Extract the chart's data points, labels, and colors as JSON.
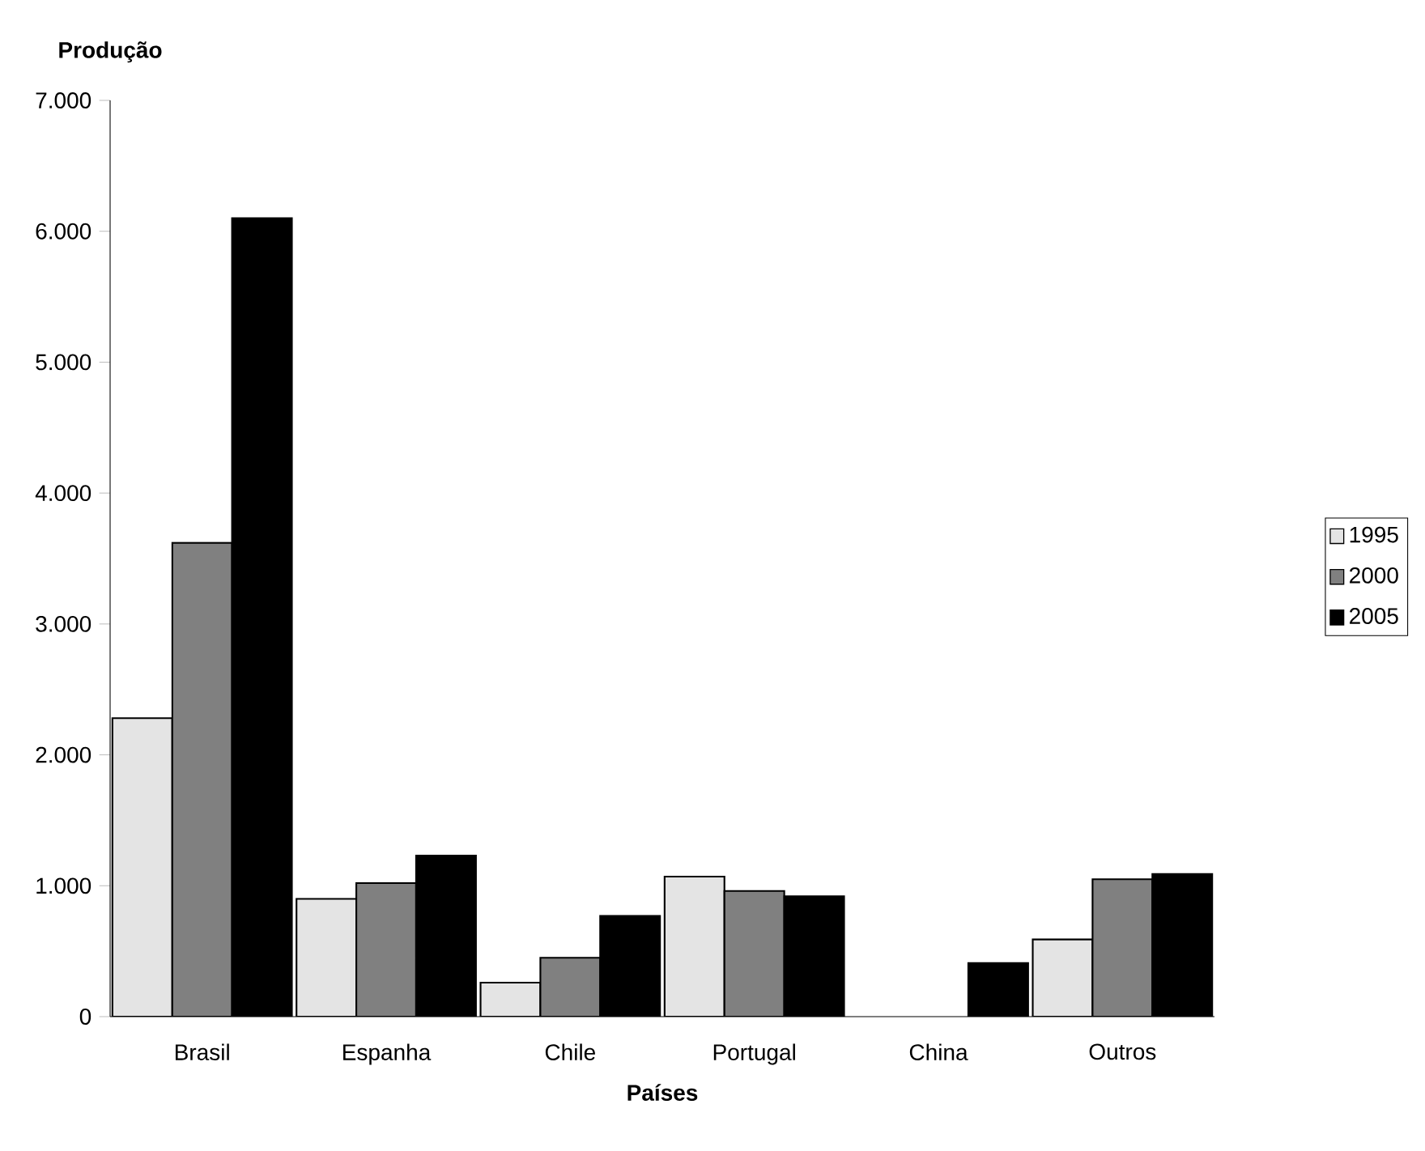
{
  "chart_data": {
    "type": "bar",
    "xlabel": "Países",
    "ylabel": "Produção",
    "categories": [
      "Brasil",
      "Espanha",
      "Chile",
      "Portugal",
      "China",
      "Outros"
    ],
    "series": [
      {
        "name": "1995",
        "color": "#e4e4e4",
        "values": [
          2280,
          900,
          260,
          1070,
          null,
          590
        ]
      },
      {
        "name": "2000",
        "color": "#808080",
        "values": [
          3620,
          1020,
          450,
          960,
          null,
          1050
        ]
      },
      {
        "name": "2005",
        "color": "#000000",
        "values": [
          6100,
          1230,
          770,
          920,
          410,
          1090
        ]
      }
    ],
    "ylim": [
      0,
      7000
    ],
    "yticks": [
      0,
      {
        "value": 1000,
        "label": "1.000"
      },
      {
        "value": 2000,
        "label": "2.000"
      },
      {
        "value": 3000,
        "label": "3.000"
      },
      {
        "value": 4000,
        "label": "4.000"
      },
      {
        "value": 5000,
        "label": "5.000"
      },
      {
        "value": 6000,
        "label": "6.000"
      },
      {
        "value": 7000,
        "label": "7.000"
      }
    ],
    "grid": false,
    "legend": "right"
  }
}
